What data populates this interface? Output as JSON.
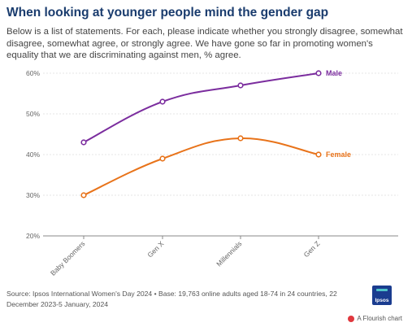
{
  "header": {
    "title": "When looking at younger people mind the gender gap",
    "subtitle": "Below is a list of statements. For each, please indicate whether you strongly disagree, somewhat disagree, somewhat agree, or strongly agree. We have gone so far in promoting women's equality that we are discriminating against men, % agree."
  },
  "footer": {
    "source": "Source: Ipsos International Women's Day 2024 • Base: 19,763 online adults aged 18-74 in 24 countries, 22 December 2023-5 January, 2024",
    "logo_text": "Ipsos",
    "flourish_credit": "A Flourish chart"
  },
  "chart_data": {
    "type": "line",
    "categories": [
      "Baby Boomers",
      "Gen X",
      "Millennials",
      "Gen Z"
    ],
    "series": [
      {
        "name": "Male",
        "values": [
          43,
          53,
          57,
          60
        ],
        "color": "#7b2d9e"
      },
      {
        "name": "Female",
        "values": [
          30,
          39,
          44,
          40
        ],
        "color": "#e8731a"
      }
    ],
    "y_ticks": [
      "20%",
      "30%",
      "40%",
      "50%",
      "60%"
    ],
    "ylim": [
      20,
      60
    ],
    "grid": "horizontal",
    "legend": "direct labels at line ends"
  }
}
